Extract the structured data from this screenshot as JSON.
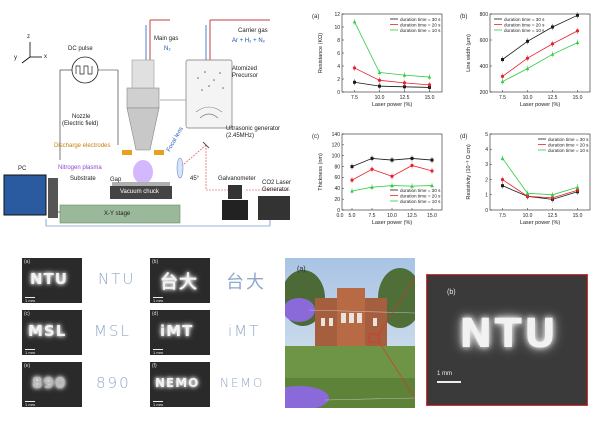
{
  "schematic": {
    "axes": {
      "y": "y",
      "z": "z",
      "x": "x"
    },
    "dc_pulse": "DC pulse",
    "main_gas": "Main gas",
    "main_gas_formula": "N₂",
    "carrier_gas": "Carrier gas",
    "carrier_gas_formula": "Ar + H₂ + N₂",
    "atomized": "Atomized",
    "precursor": "Precursor",
    "nozzle": "Nozzle",
    "nozzle_sub": "(Electric field)",
    "ultrasonic": "Ultrasonic generator",
    "ultrasonic_freq": "(2.45MHz)",
    "discharge": "Discharge electrodes",
    "focal_lens": "Focal lens",
    "nitrogen_plasma": "Nitrogen plasma",
    "angle": "45°",
    "gap": "Gap",
    "pc": "PC",
    "substrate": "Substrate",
    "vacuum_chuck": "Vacuum chuck",
    "xy_stage": "X-Y stage",
    "galvanometer": "Galvanometer",
    "co2_laser": "CO2 Laser",
    "co2_generator": "Generator"
  },
  "colors": {
    "black": "#1a1a1a",
    "red": "#e8202a",
    "green": "#2ecc40"
  },
  "chart_data": [
    {
      "panel": "(a)",
      "type": "line",
      "xlabel": "Laser power (%)",
      "ylabel": "Resistance (KΩ)",
      "x": [
        7.5,
        10.0,
        12.5,
        15.0
      ],
      "xticks": [
        "7.5",
        "10.0",
        "12.5",
        "15.0"
      ],
      "ylim": [
        0,
        12
      ],
      "yticks": [
        "0",
        "2",
        "4",
        "6",
        "8",
        "10",
        "12"
      ],
      "legend": "top-right",
      "series": [
        {
          "name": "duration time = 30 s",
          "color": "#1a1a1a",
          "values": [
            1.5,
            0.9,
            0.8,
            0.7
          ]
        },
        {
          "name": "duration time = 20 s",
          "color": "#e8202a",
          "values": [
            3.7,
            1.8,
            1.4,
            1.1
          ]
        },
        {
          "name": "duration time = 10 s",
          "color": "#2ecc40",
          "values": [
            10.8,
            3.0,
            2.6,
            2.3
          ]
        }
      ]
    },
    {
      "panel": "(b)",
      "type": "line",
      "xlabel": "Laser power (%)",
      "ylabel": "Line width (μm)",
      "x": [
        7.5,
        10.0,
        12.5,
        15.0
      ],
      "xticks": [
        "7.5",
        "10.0",
        "12.5",
        "15.0"
      ],
      "ylim": [
        200,
        800
      ],
      "yticks": [
        "200",
        "400",
        "600",
        "800"
      ],
      "legend": "top-left",
      "series": [
        {
          "name": "duration time = 30 s",
          "color": "#1a1a1a",
          "values": [
            450,
            590,
            700,
            790
          ]
        },
        {
          "name": "duration time = 20 s",
          "color": "#e8202a",
          "values": [
            320,
            460,
            570,
            670
          ]
        },
        {
          "name": "duration time = 10 s",
          "color": "#2ecc40",
          "values": [
            280,
            380,
            490,
            580
          ]
        }
      ]
    },
    {
      "panel": "(c)",
      "type": "line",
      "xlabel": "Laser power (%)",
      "ylabel": "Thickness (nm)",
      "x": [
        5.0,
        7.5,
        10.0,
        12.5,
        15.0
      ],
      "xticks": [
        "5.0",
        "7.5",
        "10.0",
        "12.5",
        "15.0"
      ],
      "xtick_extra": "0.0",
      "ylim": [
        0,
        140
      ],
      "yticks": [
        "0",
        "20",
        "40",
        "60",
        "80",
        "100",
        "120",
        "140"
      ],
      "legend": "bottom-right",
      "series": [
        {
          "name": "duration time = 30 s",
          "color": "#1a1a1a",
          "values": [
            80,
            95,
            92,
            95,
            92
          ]
        },
        {
          "name": "duration time = 20 s",
          "color": "#e8202a",
          "values": [
            55,
            75,
            62,
            82,
            72
          ]
        },
        {
          "name": "duration time = 10 s",
          "color": "#2ecc40",
          "values": [
            35,
            42,
            45,
            44,
            45
          ]
        }
      ]
    },
    {
      "panel": "(d)",
      "type": "line",
      "xlabel": "Laser power (%)",
      "ylabel": "Resistivity (10⁻³ Ω cm)",
      "x": [
        7.5,
        10.0,
        12.5,
        15.0
      ],
      "xticks": [
        "7.5",
        "10.0",
        "12.5",
        "15.0"
      ],
      "ylim": [
        0,
        5
      ],
      "yticks": [
        "0",
        "1",
        "2",
        "3",
        "4",
        "5"
      ],
      "legend": "top-right",
      "series": [
        {
          "name": "duration time = 30 s",
          "color": "#1a1a1a",
          "values": [
            1.6,
            0.9,
            0.7,
            1.2
          ]
        },
        {
          "name": "duration time = 20 s",
          "color": "#e8202a",
          "values": [
            2.0,
            0.9,
            0.8,
            1.3
          ]
        },
        {
          "name": "duration time = 10 s",
          "color": "#2ecc40",
          "values": [
            3.4,
            1.1,
            1.0,
            1.5
          ]
        }
      ]
    }
  ],
  "micrographs": [
    {
      "label": "(a)",
      "text": "NTU",
      "pattern": "NTU",
      "scale": "1 mm"
    },
    {
      "label": "(b)",
      "text": "台大",
      "pattern": "台大",
      "scale": "1 mm"
    },
    {
      "label": "(c)",
      "text": "MSL",
      "pattern": "MSL",
      "scale": "1 mm"
    },
    {
      "label": "(d)",
      "text": "iMT",
      "pattern": "iMT",
      "scale": "1 mm"
    },
    {
      "label": "(e)",
      "text": "890",
      "pattern": "890",
      "scale": "1 mm"
    },
    {
      "label": "(f)",
      "text": "NEMO",
      "pattern": "NEMO",
      "scale": "1 mm"
    }
  ],
  "photo": {
    "label": "(a)"
  },
  "zoom": {
    "label": "(b)",
    "text": "NTU",
    "scale": "1 mm"
  }
}
